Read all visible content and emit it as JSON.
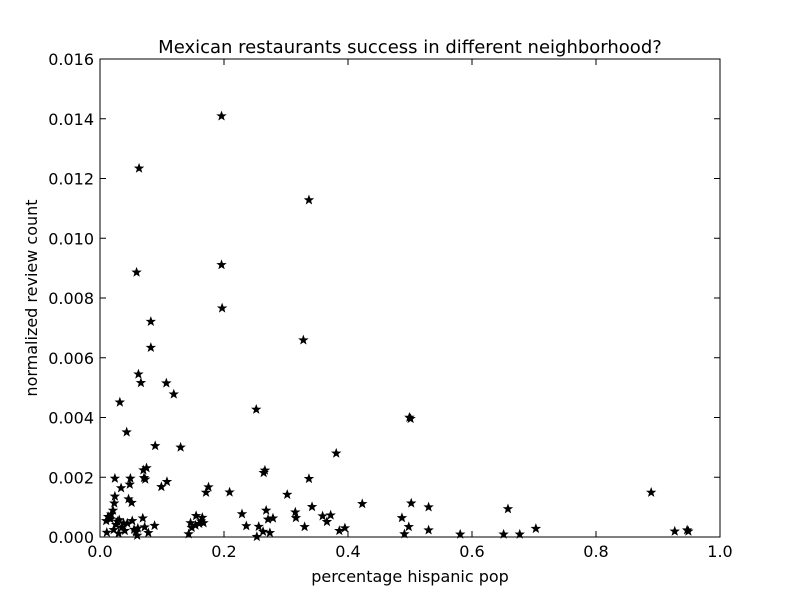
{
  "chart_data": {
    "type": "scatter",
    "title": "Mexican restaurants success in different neighborhood?",
    "xlabel": "percentage hispanic pop",
    "ylabel": "normalized review count",
    "xlim": [
      0.0,
      1.0
    ],
    "ylim": [
      0.0,
      0.016
    ],
    "xticks": [
      "0.0",
      "0.2",
      "0.4",
      "0.6",
      "0.8",
      "1.0"
    ],
    "yticks": [
      "0.000",
      "0.002",
      "0.004",
      "0.006",
      "0.008",
      "0.010",
      "0.012",
      "0.014",
      "0.016"
    ],
    "marker": "star",
    "marker_color": "#000000",
    "grid": false,
    "points": [
      [
        0.196,
        0.01409
      ],
      [
        0.063,
        0.01234
      ],
      [
        0.337,
        0.01128
      ],
      [
        0.196,
        0.00911
      ],
      [
        0.059,
        0.00886
      ],
      [
        0.197,
        0.00766
      ],
      [
        0.082,
        0.00721
      ],
      [
        0.328,
        0.00659
      ],
      [
        0.082,
        0.00634
      ],
      [
        0.062,
        0.00545
      ],
      [
        0.066,
        0.00516
      ],
      [
        0.107,
        0.00515
      ],
      [
        0.119,
        0.00478
      ],
      [
        0.032,
        0.00451
      ],
      [
        0.252,
        0.00427
      ],
      [
        0.499,
        0.004
      ],
      [
        0.501,
        0.00396
      ],
      [
        0.043,
        0.00351
      ],
      [
        0.089,
        0.00305
      ],
      [
        0.13,
        0.003
      ],
      [
        0.381,
        0.0028
      ],
      [
        0.266,
        0.00223
      ],
      [
        0.075,
        0.00231
      ],
      [
        0.07,
        0.00224
      ],
      [
        0.264,
        0.00215
      ],
      [
        0.071,
        0.00198
      ],
      [
        0.073,
        0.00193
      ],
      [
        0.024,
        0.00196
      ],
      [
        0.337,
        0.00195
      ],
      [
        0.049,
        0.00196
      ],
      [
        0.108,
        0.00185
      ],
      [
        0.048,
        0.00176
      ],
      [
        0.099,
        0.00168
      ],
      [
        0.175,
        0.00167
      ],
      [
        0.034,
        0.00164
      ],
      [
        0.171,
        0.00149
      ],
      [
        0.209,
        0.0015
      ],
      [
        0.302,
        0.00142
      ],
      [
        0.889,
        0.00149
      ],
      [
        0.046,
        0.00127
      ],
      [
        0.024,
        0.00136
      ],
      [
        0.051,
        0.00115
      ],
      [
        0.423,
        0.00111
      ],
      [
        0.502,
        0.00113
      ],
      [
        0.023,
        0.00113
      ],
      [
        0.342,
        0.00101
      ],
      [
        0.53,
        0.001
      ],
      [
        0.658,
        0.00094
      ],
      [
        0.021,
        0.00089
      ],
      [
        0.018,
        0.00076
      ],
      [
        0.229,
        0.00077
      ],
      [
        0.268,
        0.00089
      ],
      [
        0.315,
        0.00083
      ],
      [
        0.013,
        0.00068
      ],
      [
        0.155,
        0.00071
      ],
      [
        0.165,
        0.00065
      ],
      [
        0.372,
        0.00073
      ],
      [
        0.487,
        0.00064
      ],
      [
        0.031,
        0.00057
      ],
      [
        0.017,
        0.0006
      ],
      [
        0.069,
        0.00063
      ],
      [
        0.028,
        0.00052
      ],
      [
        0.038,
        0.00046
      ],
      [
        0.052,
        0.00054
      ],
      [
        0.146,
        0.00047
      ],
      [
        0.163,
        0.00053
      ],
      [
        0.271,
        0.00059
      ],
      [
        0.279,
        0.00063
      ],
      [
        0.316,
        0.00064
      ],
      [
        0.359,
        0.0007
      ],
      [
        0.366,
        0.00051
      ],
      [
        0.01,
        0.00054
      ],
      [
        0.026,
        0.00041
      ],
      [
        0.035,
        0.00032
      ],
      [
        0.044,
        0.00046
      ],
      [
        0.061,
        0.00029
      ],
      [
        0.072,
        0.00033
      ],
      [
        0.088,
        0.00038
      ],
      [
        0.148,
        0.00031
      ],
      [
        0.154,
        0.00039
      ],
      [
        0.16,
        0.00045
      ],
      [
        0.167,
        0.00047
      ],
      [
        0.236,
        0.00037
      ],
      [
        0.256,
        0.00035
      ],
      [
        0.33,
        0.00034
      ],
      [
        0.395,
        0.0003
      ],
      [
        0.498,
        0.00034
      ],
      [
        0.703,
        0.00028
      ],
      [
        0.022,
        0.00024
      ],
      [
        0.04,
        0.00021
      ],
      [
        0.055,
        0.00025
      ],
      [
        0.058,
        0.00017
      ],
      [
        0.078,
        0.00014
      ],
      [
        0.143,
        0.0001
      ],
      [
        0.263,
        0.00018
      ],
      [
        0.274,
        0.00014
      ],
      [
        0.386,
        0.00021
      ],
      [
        0.53,
        0.00023
      ],
      [
        0.581,
        9e-05
      ],
      [
        0.651,
        9e-05
      ],
      [
        0.677,
        9e-05
      ],
      [
        0.491,
        0.0001
      ],
      [
        0.927,
        0.00019
      ],
      [
        0.947,
        0.00023
      ],
      [
        0.949,
        0.00019
      ],
      [
        0.011,
        0.00015
      ],
      [
        0.03,
        0.00012
      ],
      [
        0.06,
        5e-05
      ],
      [
        0.253,
        1e-05
      ]
    ]
  }
}
